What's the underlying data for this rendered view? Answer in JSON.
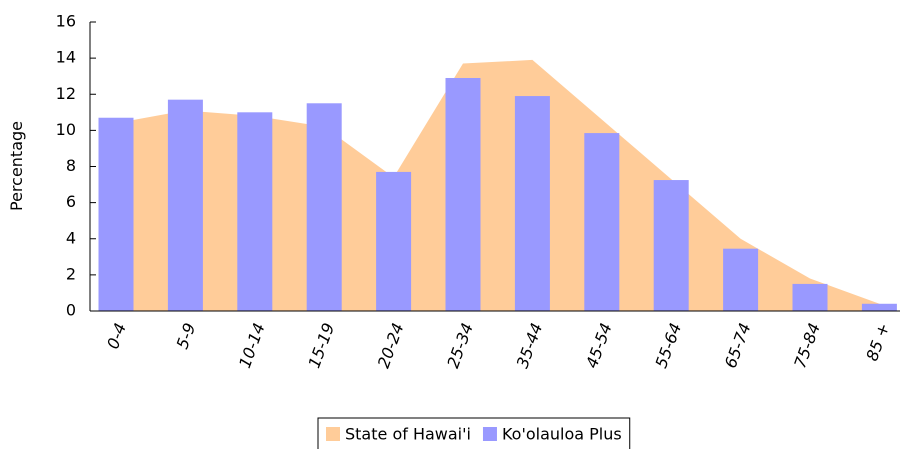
{
  "chart_data": {
    "type": "bar",
    "ylabel": "Percentage",
    "categories": [
      "0-4",
      "5-9",
      "10-14",
      "15-19",
      "20-24",
      "25-34",
      "35-44",
      "45-54",
      "55-64",
      "65-74",
      "75-84",
      "85 +"
    ],
    "series": [
      {
        "name": "State of Hawai'i",
        "type": "area",
        "color": "#ffcc99",
        "values": [
          10.4,
          11.1,
          10.8,
          10.2,
          7.4,
          13.7,
          13.9,
          10.6,
          7.3,
          4.0,
          1.8,
          0.4
        ]
      },
      {
        "name": "Ko'olauloa Plus",
        "type": "bar",
        "color": "#9999ff",
        "values": [
          10.7,
          11.7,
          11.0,
          11.5,
          7.7,
          12.9,
          11.9,
          9.85,
          7.25,
          3.45,
          1.5,
          0.4
        ]
      }
    ],
    "ylim": [
      0,
      16
    ],
    "yticks": [
      0,
      2,
      4,
      6,
      8,
      10,
      12,
      14,
      16
    ]
  }
}
